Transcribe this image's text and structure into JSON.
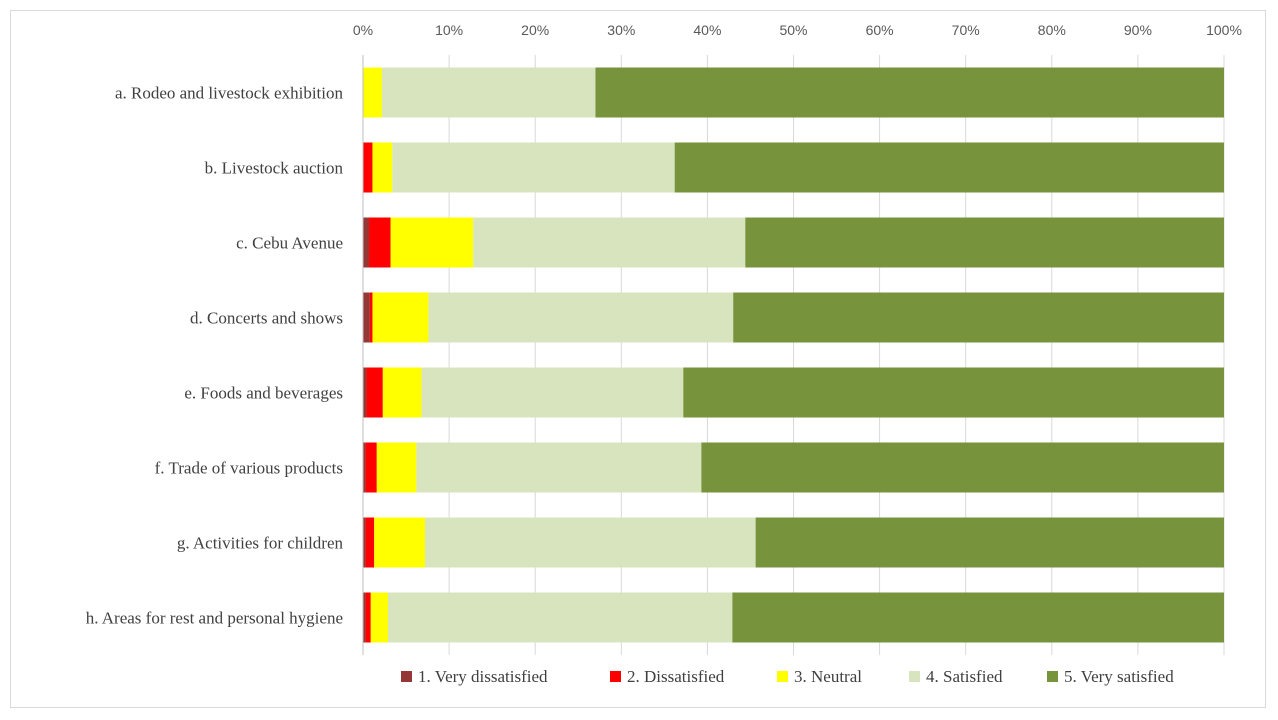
{
  "chart_data": {
    "type": "bar",
    "orientation": "horizontal",
    "stacked": "percent",
    "title": "",
    "xlabel": "",
    "ylabel": "",
    "xlim": [
      0,
      100
    ],
    "x_ticks": [
      "0%",
      "10%",
      "20%",
      "30%",
      "40%",
      "50%",
      "60%",
      "70%",
      "80%",
      "90%",
      "100%"
    ],
    "grid": "vertical",
    "legend_position": "bottom",
    "categories": [
      "a. Rodeo and livestock exhibition",
      "b. Livestock auction",
      "c. Cebu Avenue",
      "d. Concerts and shows",
      "e. Foods and beverages",
      "f. Trade of various products",
      "g. Activities for children",
      "h. Areas for rest and personal hygiene"
    ],
    "series": [
      {
        "name": "1. Very dissatisfied",
        "color": "#953735",
        "values": [
          0,
          0,
          0.7,
          0.8,
          0.4,
          0.3,
          0.3,
          0.3
        ]
      },
      {
        "name": "2. Dissatisfied",
        "color": "#ff0000",
        "values": [
          0,
          1.1,
          2.5,
          0.3,
          1.9,
          1.3,
          1.0,
          0.6
        ]
      },
      {
        "name": "3. Neutral",
        "color": "#ffff00",
        "values": [
          2.2,
          2.3,
          9.6,
          6.5,
          4.5,
          4.6,
          5.9,
          2.0
        ]
      },
      {
        "name": "4. Satisfied",
        "color": "#d7e4bd",
        "values": [
          24.8,
          32.8,
          31.6,
          35.4,
          30.4,
          33.1,
          38.4,
          40.0
        ]
      },
      {
        "name": "5. Very satisfied",
        "color": "#77933c",
        "values": [
          73.0,
          63.8,
          55.6,
          57.0,
          62.8,
          60.7,
          54.4,
          57.1
        ]
      }
    ]
  }
}
